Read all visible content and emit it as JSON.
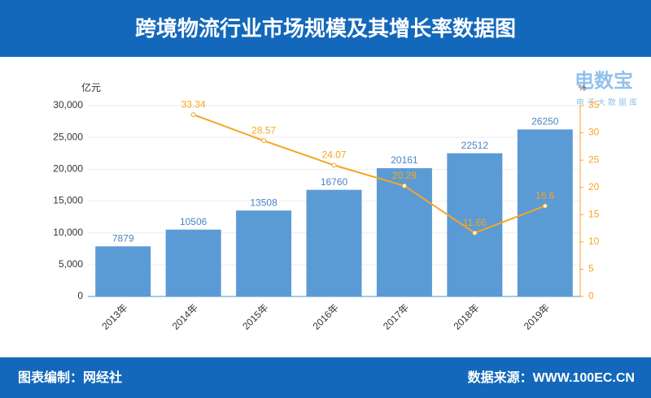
{
  "header": {
    "title": "跨境物流行业市场规模及其增长率数据图"
  },
  "footer": {
    "left": "图表编制：网经社",
    "right": "数据来源：WWW.100EC.CN"
  },
  "logo": {
    "name": "电数宝",
    "sub": "电子大数据库"
  },
  "chart_data": {
    "type": "bar-line",
    "categories": [
      "2013年",
      "2014年",
      "2015年",
      "2016年",
      "2017年",
      "2018年",
      "2019年"
    ],
    "y_label": "亿元",
    "y2_label": "%",
    "series": [
      {
        "name": "市场规模",
        "type": "bar",
        "color": "#5b9bd5",
        "values": [
          7879,
          10506,
          13508,
          16760,
          20161,
          22512,
          26250
        ]
      },
      {
        "name": "增长率",
        "type": "line",
        "axis": "y2",
        "color": "#f5a623",
        "values": [
          null,
          33.34,
          28.57,
          24.07,
          20.29,
          11.66,
          16.6
        ]
      }
    ],
    "ylim": [
      0,
      30000
    ],
    "yticks": [
      0,
      {
        "value": 5000,
        "label": "5,000"
      },
      {
        "value": 10000,
        "label": "10,000"
      },
      {
        "value": 15000,
        "label": "15,000"
      },
      {
        "value": 20000,
        "label": "20,000"
      },
      {
        "value": 25000,
        "label": "25,000"
      },
      {
        "value": 30000,
        "label": "30,000"
      }
    ],
    "y2lim": [
      0,
      35
    ],
    "y2ticks": [
      0,
      5,
      10,
      15,
      20,
      25,
      30,
      35
    ],
    "grid": true
  }
}
